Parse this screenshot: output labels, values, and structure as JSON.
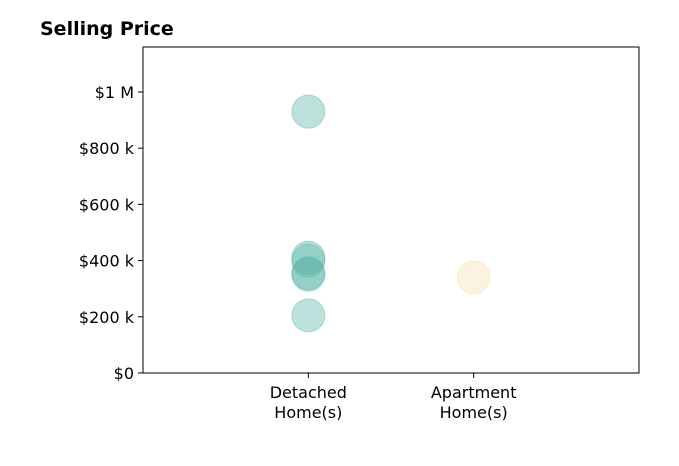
{
  "chart_data": {
    "type": "scatter",
    "title": "Selling Price",
    "xlabel": "",
    "ylabel": "",
    "categories": [
      [
        "Detached",
        "Home(s)"
      ],
      [
        "Apartment",
        "Home(s)"
      ]
    ],
    "y_ticks": [
      {
        "value": 0,
        "label": "$0"
      },
      {
        "value": 200000,
        "label": "$200 k"
      },
      {
        "value": 400000,
        "label": "$400 k"
      },
      {
        "value": 600000,
        "label": "$600 k"
      },
      {
        "value": 800000,
        "label": "$800 k"
      },
      {
        "value": 1000000,
        "label": "$1 M"
      }
    ],
    "ylim": [
      0,
      1160000
    ],
    "xlim": [
      -1,
      2
    ],
    "grid": false,
    "series": [
      {
        "category_index": 0,
        "color": "#5ab4a8",
        "values": [
          930000,
          410000,
          400000,
          355000,
          350000,
          205000
        ]
      },
      {
        "category_index": 1,
        "color": "#f5deb0",
        "values": [
          340000
        ]
      }
    ]
  }
}
